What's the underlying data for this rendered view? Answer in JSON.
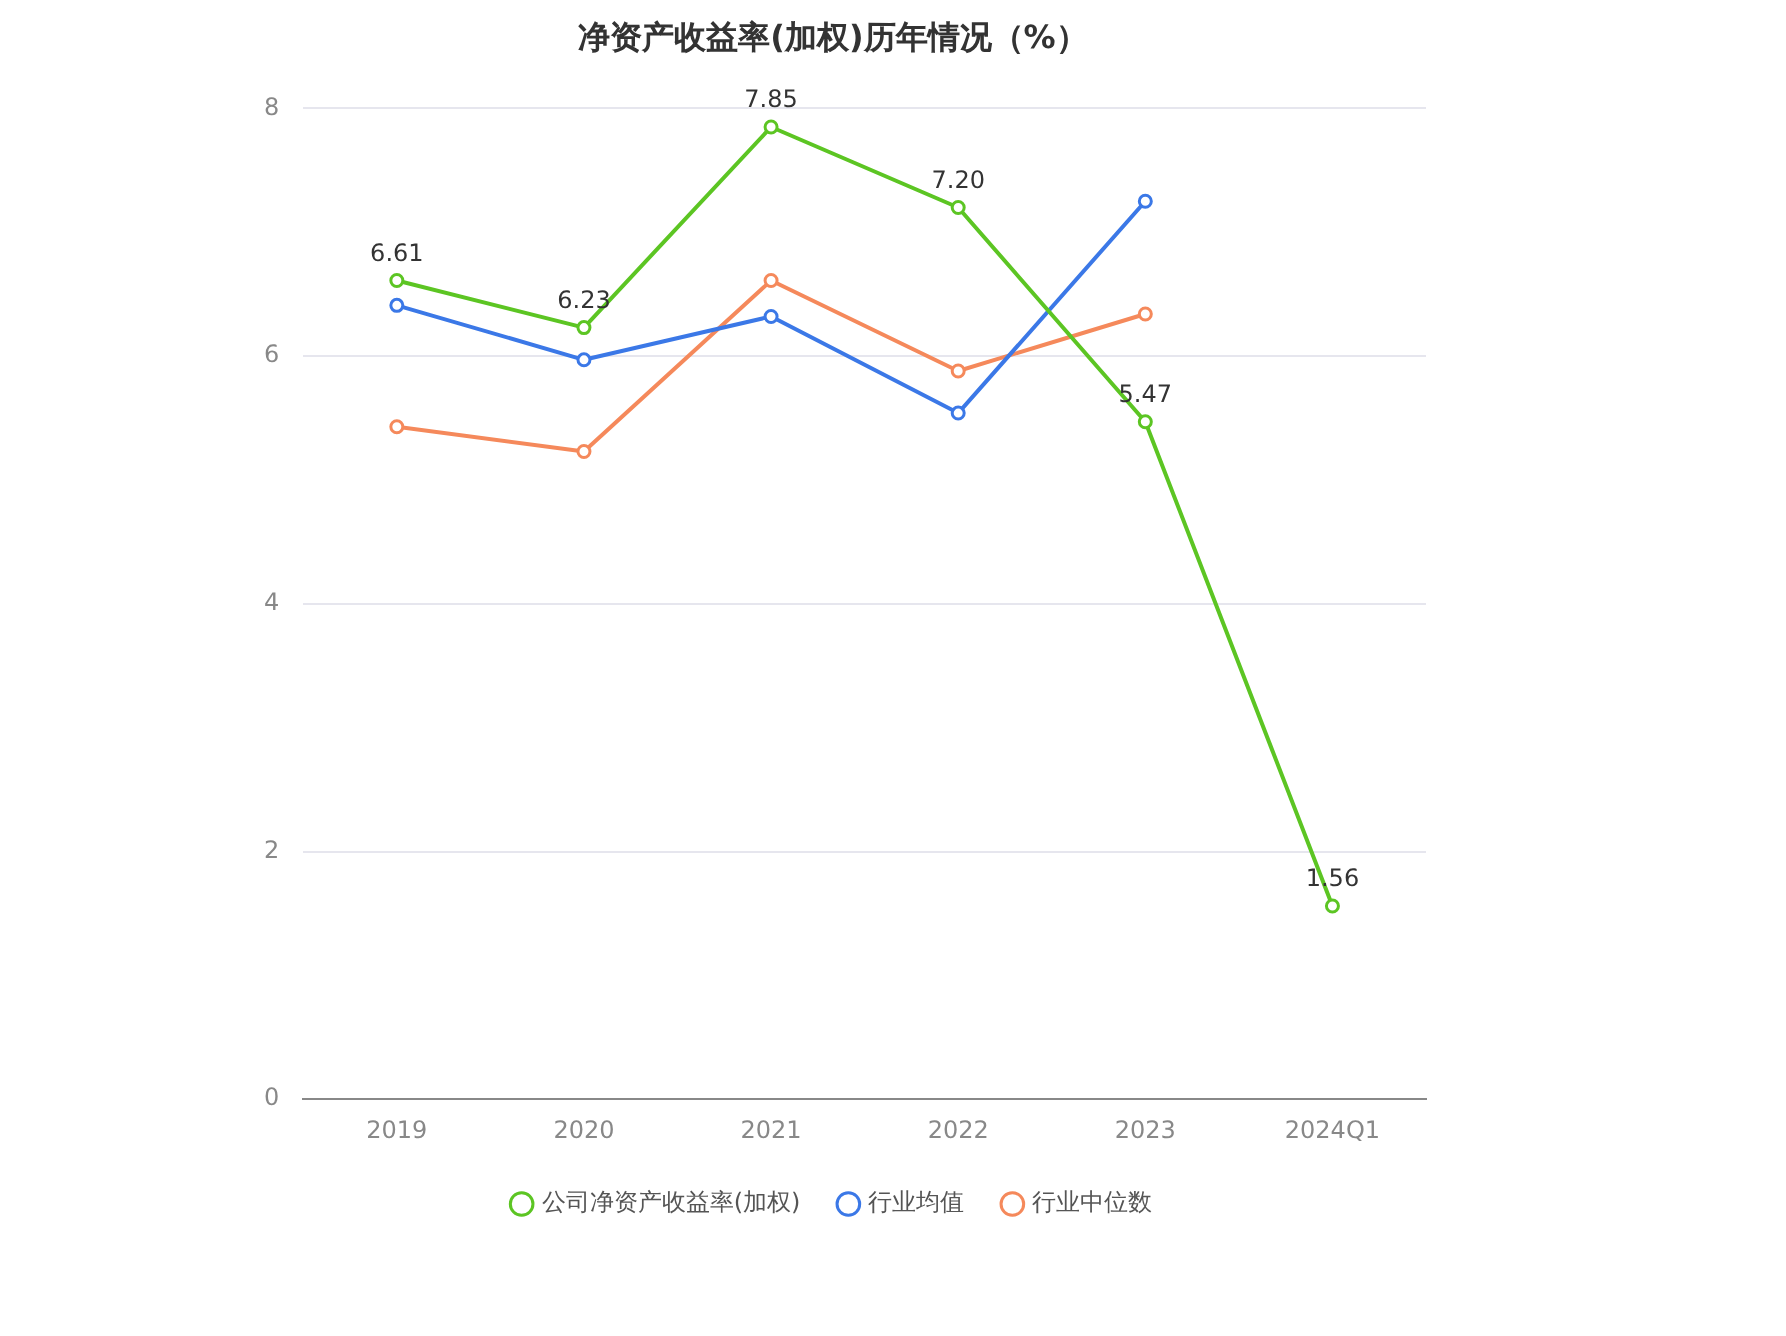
{
  "chart_data": {
    "type": "line",
    "title": "净资产收益率(加权)历年情况（%）",
    "categories": [
      "2019",
      "2020",
      "2021",
      "2022",
      "2023",
      "2024Q1"
    ],
    "series": [
      {
        "name": "公司净资产收益率(加权)",
        "color": "#5cc523",
        "values": [
          6.61,
          6.23,
          7.85,
          7.2,
          5.47,
          1.56
        ],
        "value_labels": [
          "6.61",
          "6.23",
          "7.85",
          "7.20",
          "5.47",
          "1.56"
        ]
      },
      {
        "name": "行业均值",
        "color": "#3b78e7",
        "values": [
          6.41,
          5.97,
          6.32,
          5.54,
          7.25,
          null
        ]
      },
      {
        "name": "行业中位数",
        "color": "#f5895b",
        "values": [
          5.43,
          5.23,
          6.61,
          5.88,
          6.34,
          null
        ]
      }
    ],
    "ylim": [
      0,
      8
    ],
    "yticks": [
      0,
      2,
      4,
      6,
      8
    ],
    "grid": "y",
    "legend": "bottom",
    "marker": "circle",
    "line_style": "solid"
  }
}
